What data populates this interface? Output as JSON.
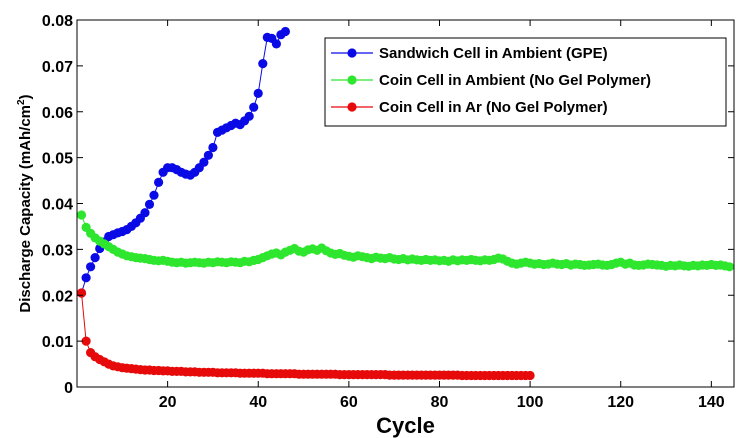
{
  "chart_data": {
    "type": "line",
    "xlabel": "Cycle",
    "ylabel": "Discharge Capacity (mAh/cm",
    "ylabel_sup": "2",
    "ylabel_end": ")",
    "xlim": [
      0,
      145
    ],
    "ylim": [
      0,
      0.08
    ],
    "xticks": [
      20,
      40,
      60,
      80,
      100,
      120,
      140
    ],
    "yticks": [
      0,
      0.01,
      0.02,
      0.03,
      0.04,
      0.05,
      0.06,
      0.07,
      0.08
    ],
    "ytick_labels": [
      "0",
      "0.01",
      "0.02",
      "0.03",
      "0.04",
      "0.05",
      "0.06",
      "0.07",
      "0.08"
    ],
    "grid": false,
    "legend_position": "top-right",
    "series": [
      {
        "name": "Sandwich Cell in Ambient (GPE)",
        "color": "#0a0ae6",
        "x": [
          1,
          2,
          3,
          4,
          5,
          6,
          7,
          8,
          9,
          10,
          11,
          12,
          13,
          14,
          15,
          16,
          17,
          18,
          19,
          20,
          21,
          22,
          23,
          24,
          25,
          26,
          27,
          28,
          29,
          30,
          31,
          32,
          33,
          34,
          35,
          36,
          37,
          38,
          39,
          40,
          41,
          42,
          43,
          44,
          45,
          46
        ],
        "y": [
          0.0205,
          0.0238,
          0.0262,
          0.0282,
          0.0302,
          0.0316,
          0.0328,
          0.0332,
          0.0336,
          0.0339,
          0.0343,
          0.035,
          0.0358,
          0.0368,
          0.038,
          0.0398,
          0.0418,
          0.0446,
          0.0468,
          0.0478,
          0.0478,
          0.0474,
          0.0468,
          0.0464,
          0.0462,
          0.0468,
          0.0478,
          0.049,
          0.0505,
          0.0522,
          0.0555,
          0.056,
          0.0565,
          0.057,
          0.0575,
          0.0572,
          0.058,
          0.059,
          0.061,
          0.064,
          0.0705,
          0.0762,
          0.076,
          0.0748,
          0.0768,
          0.0775
        ]
      },
      {
        "name": "Coin Cell in Ambient (No Gel Polymer)",
        "color": "#2ee62e",
        "x": [
          1,
          2,
          3,
          4,
          5,
          6,
          7,
          8,
          9,
          10,
          11,
          12,
          13,
          14,
          15,
          16,
          17,
          18,
          19,
          20,
          21,
          22,
          23,
          24,
          25,
          26,
          27,
          28,
          29,
          30,
          31,
          32,
          33,
          34,
          35,
          36,
          37,
          38,
          39,
          40,
          41,
          42,
          43,
          44,
          45,
          46,
          47,
          48,
          49,
          50,
          51,
          52,
          53,
          54,
          55,
          56,
          57,
          58,
          59,
          60,
          61,
          62,
          63,
          64,
          65,
          66,
          67,
          68,
          69,
          70,
          71,
          72,
          73,
          74,
          75,
          76,
          77,
          78,
          79,
          80,
          81,
          82,
          83,
          84,
          85,
          86,
          87,
          88,
          89,
          90,
          91,
          92,
          93,
          94,
          95,
          96,
          97,
          98,
          99,
          100,
          101,
          102,
          103,
          104,
          105,
          106,
          107,
          108,
          109,
          110,
          111,
          112,
          113,
          114,
          115,
          116,
          117,
          118,
          119,
          120,
          121,
          122,
          123,
          124,
          125,
          126,
          127,
          128,
          129,
          130,
          131,
          132,
          133,
          134,
          135,
          136,
          137,
          138,
          139,
          140,
          141,
          142,
          143,
          144
        ],
        "y": [
          0.0375,
          0.0348,
          0.0335,
          0.0325,
          0.0318,
          0.0312,
          0.0306,
          0.03,
          0.0294,
          0.029,
          0.0286,
          0.0284,
          0.0282,
          0.0281,
          0.028,
          0.0278,
          0.0276,
          0.0275,
          0.0276,
          0.0274,
          0.0272,
          0.0271,
          0.0272,
          0.027,
          0.0271,
          0.0272,
          0.0271,
          0.027,
          0.0272,
          0.0271,
          0.0273,
          0.0272,
          0.0271,
          0.0273,
          0.0272,
          0.0271,
          0.0274,
          0.0273,
          0.0276,
          0.0278,
          0.0282,
          0.0286,
          0.029,
          0.0292,
          0.0288,
          0.0294,
          0.0298,
          0.0302,
          0.0296,
          0.0294,
          0.0299,
          0.0301,
          0.0298,
          0.0303,
          0.0297,
          0.0292,
          0.0289,
          0.0291,
          0.0287,
          0.0285,
          0.0283,
          0.0286,
          0.0284,
          0.0282,
          0.028,
          0.0283,
          0.0281,
          0.028,
          0.0282,
          0.0279,
          0.0278,
          0.028,
          0.0277,
          0.0279,
          0.0277,
          0.0276,
          0.0278,
          0.0276,
          0.0277,
          0.0275,
          0.0276,
          0.0274,
          0.0277,
          0.0275,
          0.0277,
          0.0276,
          0.0278,
          0.0276,
          0.0275,
          0.0277,
          0.0276,
          0.0278,
          0.0281,
          0.0279,
          0.0274,
          0.027,
          0.0268,
          0.027,
          0.0272,
          0.027,
          0.0268,
          0.0269,
          0.0267,
          0.0268,
          0.027,
          0.0268,
          0.0267,
          0.0269,
          0.0266,
          0.0268,
          0.0267,
          0.0265,
          0.0266,
          0.0267,
          0.0268,
          0.0266,
          0.0265,
          0.0267,
          0.027,
          0.0272,
          0.0268,
          0.027,
          0.0266,
          0.0265,
          0.0266,
          0.0268,
          0.0267,
          0.0266,
          0.0265,
          0.0263,
          0.0265,
          0.0264,
          0.0266,
          0.0264,
          0.0263,
          0.0265,
          0.0264,
          0.0266,
          0.0265,
          0.0267,
          0.0265,
          0.0266,
          0.0264,
          0.0262
        ]
      },
      {
        "name": "Coin Cell in Ar (No Gel Polymer)",
        "color": "#e60a0a",
        "x": [
          1,
          2,
          3,
          4,
          5,
          6,
          7,
          8,
          9,
          10,
          11,
          12,
          13,
          14,
          15,
          16,
          17,
          18,
          19,
          20,
          21,
          22,
          23,
          24,
          25,
          26,
          27,
          28,
          29,
          30,
          31,
          32,
          33,
          34,
          35,
          36,
          37,
          38,
          39,
          40,
          41,
          42,
          43,
          44,
          45,
          46,
          47,
          48,
          49,
          50,
          51,
          52,
          53,
          54,
          55,
          56,
          57,
          58,
          59,
          60,
          61,
          62,
          63,
          64,
          65,
          66,
          67,
          68,
          69,
          70,
          71,
          72,
          73,
          74,
          75,
          76,
          77,
          78,
          79,
          80,
          81,
          82,
          83,
          84,
          85,
          86,
          87,
          88,
          89,
          90,
          91,
          92,
          93,
          94,
          95,
          96,
          97,
          98,
          99,
          100
        ],
        "y": [
          0.0205,
          0.01,
          0.0075,
          0.0066,
          0.006,
          0.0055,
          0.005,
          0.0046,
          0.0044,
          0.0042,
          0.0041,
          0.004,
          0.0039,
          0.0038,
          0.0037,
          0.0037,
          0.0036,
          0.0036,
          0.0035,
          0.0035,
          0.0034,
          0.0034,
          0.0034,
          0.0033,
          0.0033,
          0.0033,
          0.0032,
          0.0032,
          0.0032,
          0.0032,
          0.0031,
          0.0031,
          0.0031,
          0.0031,
          0.0031,
          0.003,
          0.003,
          0.003,
          0.003,
          0.003,
          0.003,
          0.0029,
          0.0029,
          0.0029,
          0.0029,
          0.0029,
          0.0029,
          0.0029,
          0.0028,
          0.0028,
          0.0028,
          0.0028,
          0.0028,
          0.0028,
          0.0028,
          0.0028,
          0.0028,
          0.0027,
          0.0027,
          0.0027,
          0.0027,
          0.0027,
          0.0027,
          0.0027,
          0.0027,
          0.0027,
          0.0027,
          0.0027,
          0.0026,
          0.0026,
          0.0026,
          0.0026,
          0.0026,
          0.0026,
          0.0026,
          0.0026,
          0.0026,
          0.0026,
          0.0026,
          0.0026,
          0.0026,
          0.0026,
          0.0026,
          0.0026,
          0.0025,
          0.0025,
          0.0025,
          0.0025,
          0.0025,
          0.0025,
          0.0025,
          0.0025,
          0.0025,
          0.0025,
          0.0025,
          0.0025,
          0.0025,
          0.0025,
          0.0025,
          0.0025
        ]
      }
    ]
  }
}
